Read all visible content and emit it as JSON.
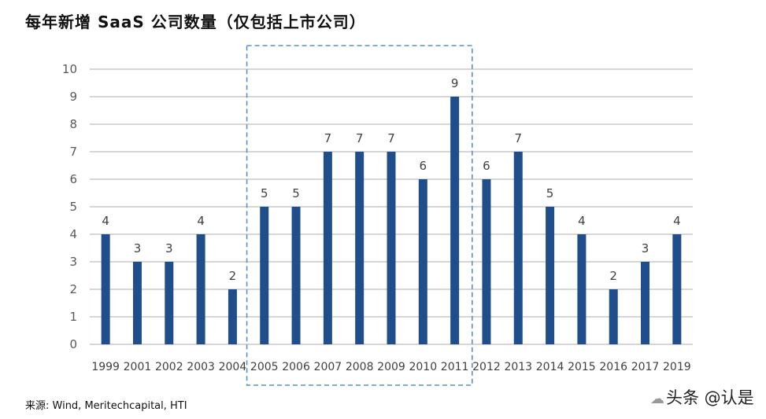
{
  "page": {
    "title": "每年新增 SaaS 公司数量（仅包括上市公司）",
    "source": "来源: Wind, Meritechcapital, HTI",
    "watermark": "头条 @认是"
  },
  "chart_data": {
    "type": "bar",
    "title": "每年新增 SaaS 公司数量（仅包括上市公司）",
    "xlabel": "",
    "ylabel": "",
    "ylim": [
      0,
      10
    ],
    "yticks": [
      0,
      1,
      2,
      3,
      4,
      5,
      6,
      7,
      8,
      9,
      10
    ],
    "grid": true,
    "categories": [
      "1999",
      "2001",
      "2002",
      "2003",
      "2004",
      "2005",
      "2006",
      "2007",
      "2008",
      "2009",
      "2010",
      "2011",
      "2012",
      "2013",
      "2014",
      "2015",
      "2016",
      "2017",
      "2019"
    ],
    "values": [
      4,
      3,
      3,
      4,
      2,
      5,
      5,
      7,
      7,
      7,
      6,
      9,
      6,
      7,
      5,
      4,
      2,
      3,
      4
    ],
    "bar_color": "#1f4e8a",
    "highlight_range": [
      "2005",
      "2011"
    ],
    "highlight_color": "#5b8ec9"
  }
}
